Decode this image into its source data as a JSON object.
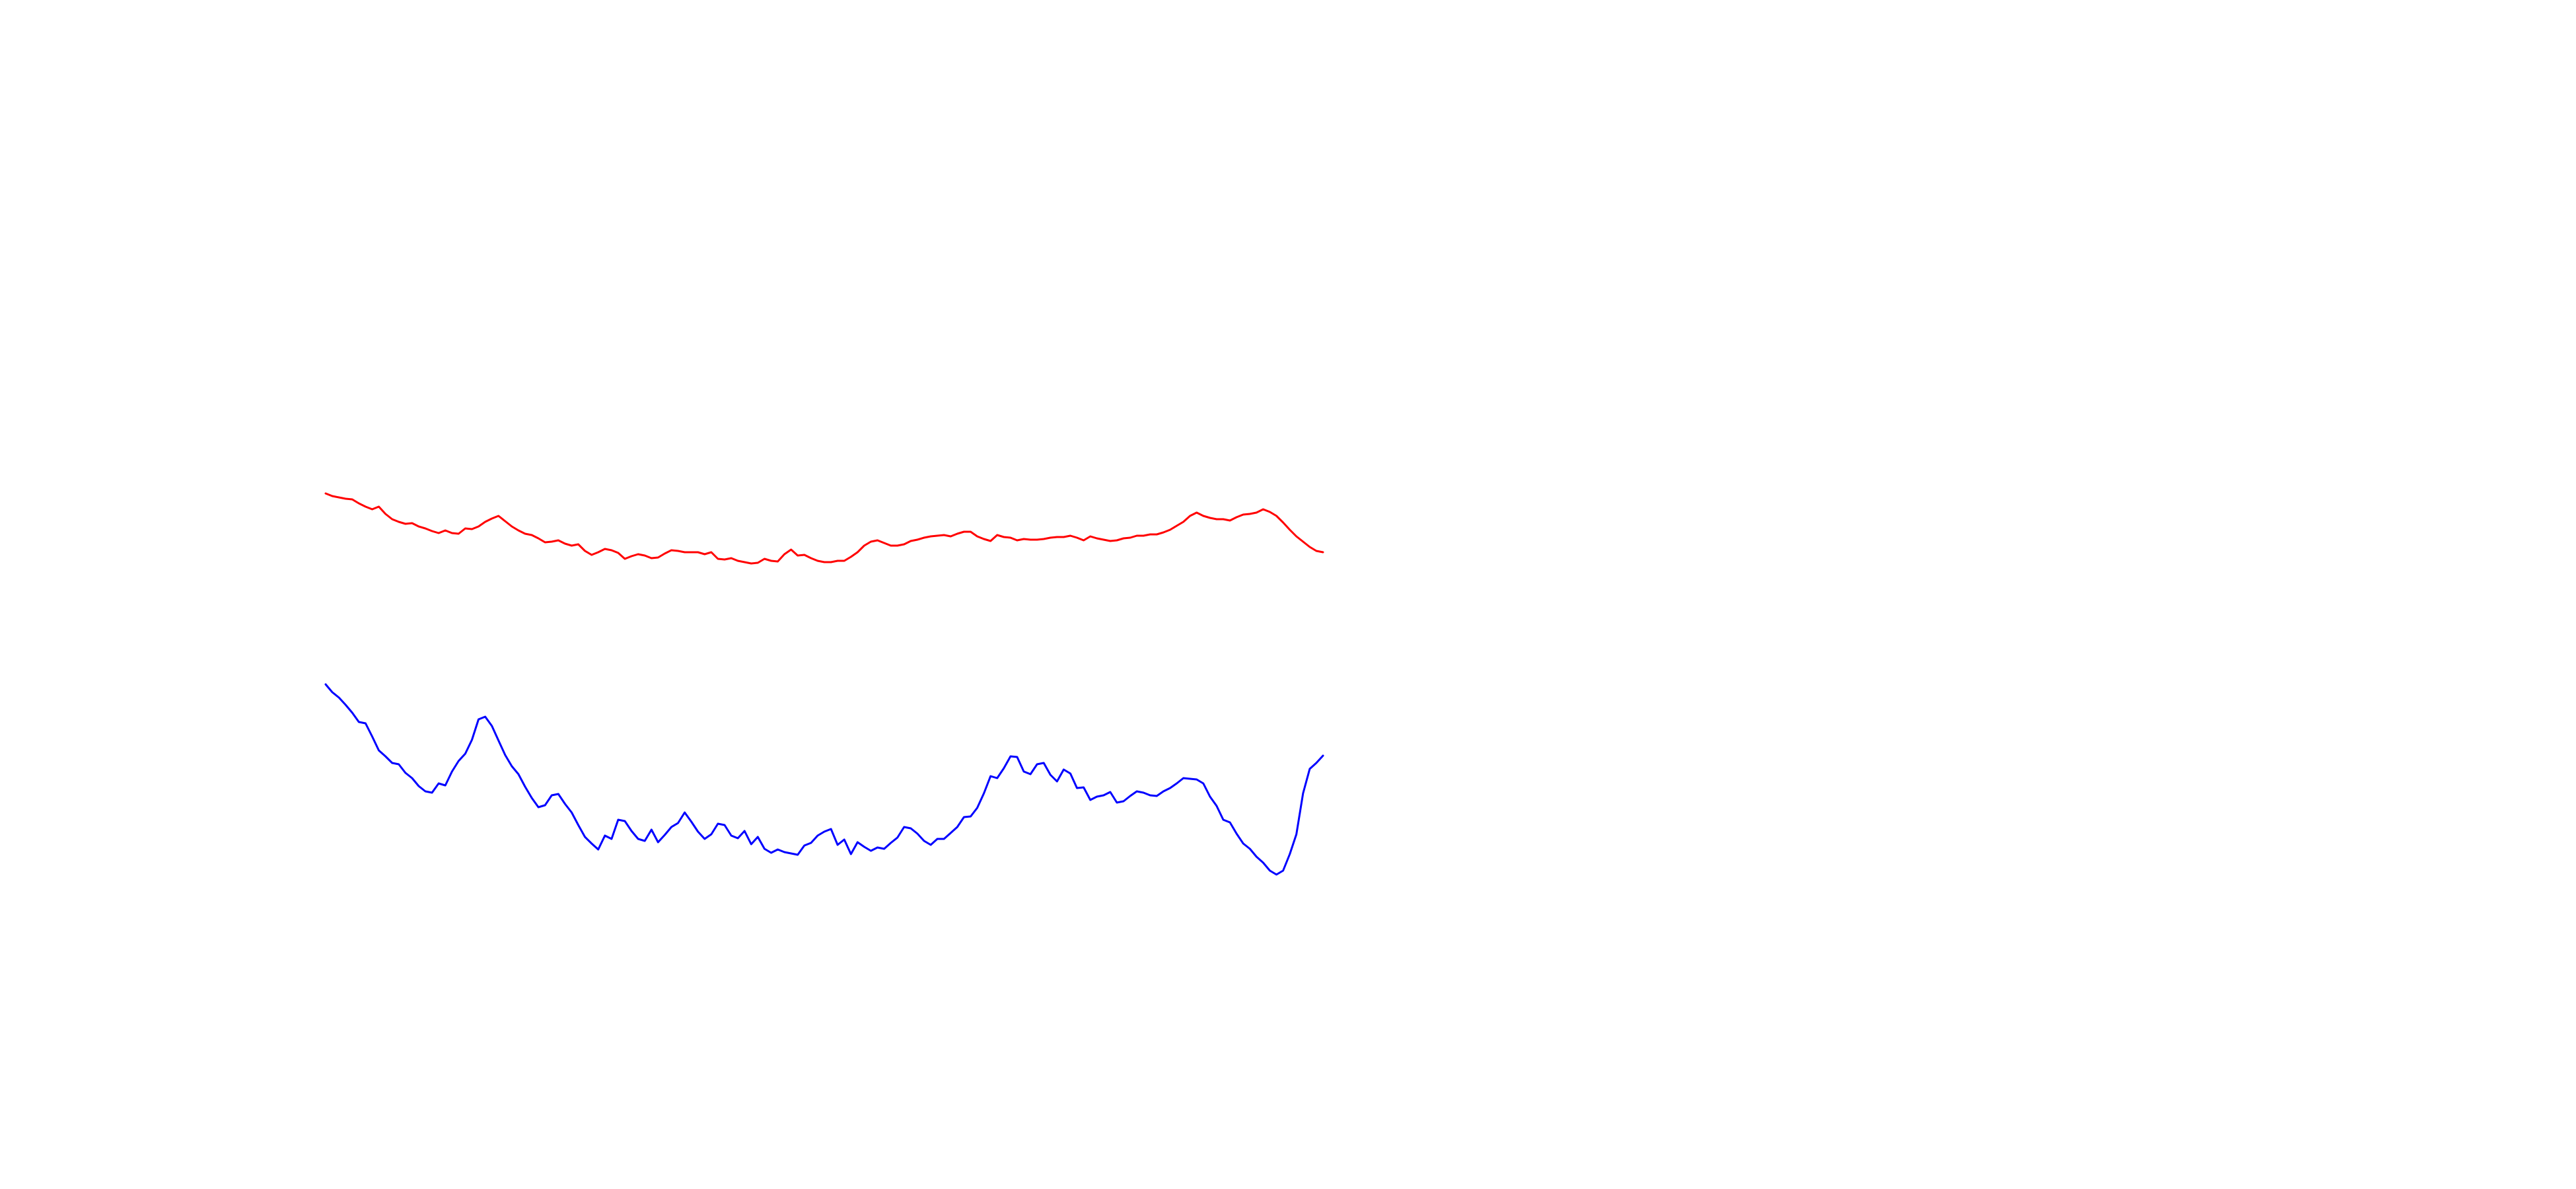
{
  "chart_data": {
    "type": "line",
    "x": [
      0,
      1,
      2,
      3,
      4,
      5,
      6,
      7,
      8,
      9,
      10,
      11,
      12,
      13,
      14,
      15,
      16,
      17,
      18,
      19,
      20,
      21,
      22,
      23,
      24,
      25,
      26,
      27,
      28,
      29,
      30,
      31,
      32,
      33,
      34,
      35,
      36,
      37,
      38,
      39,
      40,
      41,
      42,
      43,
      44,
      45,
      46,
      47,
      48,
      49,
      50,
      51,
      52,
      53,
      54,
      55,
      56,
      57,
      58,
      59,
      60,
      61,
      62,
      63,
      64,
      65,
      66,
      67,
      68,
      69,
      70,
      71,
      72,
      73,
      74,
      75,
      76,
      77,
      78,
      79,
      80,
      81,
      82,
      83,
      84,
      85,
      86,
      87,
      88,
      89,
      90,
      91,
      92,
      93,
      94,
      95,
      96,
      97,
      98,
      99,
      100,
      101,
      102,
      103,
      104,
      105,
      106,
      107,
      108,
      109,
      110,
      111,
      112,
      113,
      114,
      115,
      116,
      117,
      118,
      119,
      120,
      121,
      122,
      123,
      124,
      125,
      126,
      127,
      128,
      129,
      130,
      131,
      132,
      133,
      134,
      135,
      136,
      137,
      138,
      139,
      140,
      141,
      142,
      143,
      144,
      145,
      146,
      147,
      148,
      149,
      150
    ],
    "series": [
      {
        "color": "#ff0000",
        "values": [
          747,
          751,
          753,
          755,
          756,
          762,
          767,
          771,
          767,
          778,
          786,
          790,
          793,
          792,
          797,
          800,
          804,
          807,
          803,
          807,
          808,
          800,
          801,
          797,
          790,
          785,
          781,
          789,
          797,
          803,
          808,
          810,
          815,
          821,
          820,
          818,
          823,
          826,
          824,
          834,
          840,
          836,
          831,
          833,
          837,
          846,
          842,
          839,
          841,
          845,
          844,
          838,
          833,
          834,
          836,
          836,
          836,
          839,
          836,
          846,
          847,
          845,
          849,
          851,
          853,
          852,
          846,
          849,
          850,
          839,
          832,
          841,
          840,
          845,
          849,
          851,
          851,
          849,
          849,
          843,
          836,
          826,
          820,
          818,
          822,
          826,
          826,
          824,
          819,
          817,
          814,
          812,
          811,
          810,
          812,
          808,
          805,
          805,
          812,
          816,
          819,
          810,
          813,
          814,
          818,
          816,
          817,
          817,
          816,
          814,
          813,
          813,
          811,
          814,
          818,
          812,
          815,
          817,
          819,
          818,
          815,
          814,
          811,
          811,
          809,
          809,
          806,
          802,
          796,
          790,
          781,
          776,
          781,
          784,
          786,
          786,
          788,
          783,
          779,
          778,
          776,
          771,
          775,
          781,
          791,
          802,
          812,
          820,
          828,
          834,
          836
        ]
      },
      {
        "color": "#0000ff",
        "values": [
          1036,
          1048,
          1056,
          1067,
          1079,
          1093,
          1095,
          1115,
          1136,
          1145,
          1155,
          1157,
          1170,
          1178,
          1190,
          1198,
          1200,
          1186,
          1189,
          1168,
          1152,
          1141,
          1120,
          1089,
          1085,
          1099,
          1121,
          1143,
          1160,
          1172,
          1191,
          1208,
          1222,
          1219,
          1204,
          1202,
          1217,
          1230,
          1249,
          1267,
          1277,
          1286,
          1265,
          1270,
          1241,
          1243,
          1258,
          1270,
          1273,
          1256,
          1275,
          1264,
          1252,
          1246,
          1230,
          1244,
          1259,
          1270,
          1263,
          1247,
          1249,
          1265,
          1269,
          1258,
          1278,
          1267,
          1285,
          1291,
          1286,
          1290,
          1292,
          1294,
          1280,
          1276,
          1265,
          1259,
          1255,
          1279,
          1271,
          1293,
          1275,
          1282,
          1288,
          1283,
          1285,
          1276,
          1268,
          1252,
          1254,
          1262,
          1273,
          1279,
          1270,
          1270,
          1261,
          1252,
          1237,
          1236,
          1223,
          1201,
          1175,
          1178,
          1163,
          1145,
          1146,
          1168,
          1172,
          1157,
          1155,
          1173,
          1183,
          1165,
          1171,
          1193,
          1192,
          1211,
          1206,
          1204,
          1199,
          1215,
          1213,
          1205,
          1198,
          1200,
          1204,
          1205,
          1198,
          1193,
          1186,
          1178,
          1179,
          1180,
          1186,
          1206,
          1220,
          1241,
          1245,
          1262,
          1277,
          1285,
          1297,
          1306,
          1318,
          1324,
          1318,
          1293,
          1263,
          1201,
          1164,
          1155,
          1144
        ]
      }
    ],
    "xlabel": "",
    "ylabel": "",
    "xlim": [
      0,
      150
    ],
    "ylim": [
      1800,
      0
    ],
    "grid": false,
    "axes_visible": false
  }
}
